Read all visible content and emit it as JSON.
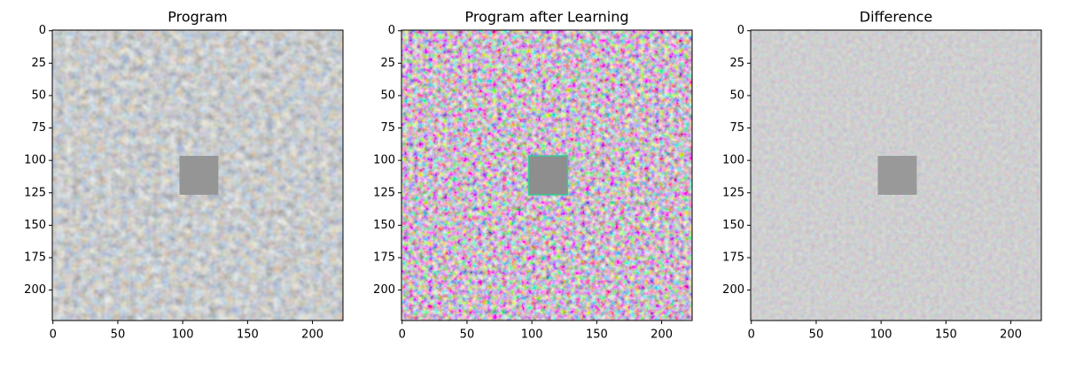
{
  "chart_data": [
    {
      "type": "image",
      "title": "Program",
      "xlim": [
        -0.5,
        223.5
      ],
      "ylim": [
        223.5,
        -0.5
      ],
      "xticks": [
        0,
        50,
        100,
        150,
        200
      ],
      "yticks": [
        0,
        25,
        50,
        75,
        100,
        125,
        150,
        175,
        200
      ]
    },
    {
      "type": "image",
      "title": "Program after Learning",
      "xlim": [
        -0.5,
        223.5
      ],
      "ylim": [
        223.5,
        -0.5
      ],
      "xticks": [
        0,
        50,
        100,
        150,
        200
      ],
      "yticks": [
        0,
        25,
        50,
        75,
        100,
        125,
        150,
        175,
        200
      ]
    },
    {
      "type": "image",
      "title": "Difference",
      "xlim": [
        -0.5,
        223.5
      ],
      "ylim": [
        223.5,
        -0.5
      ],
      "xticks": [
        0,
        50,
        100,
        150,
        200
      ],
      "yticks": [
        0,
        25,
        50,
        75,
        100,
        125,
        150,
        175,
        200
      ]
    }
  ]
}
